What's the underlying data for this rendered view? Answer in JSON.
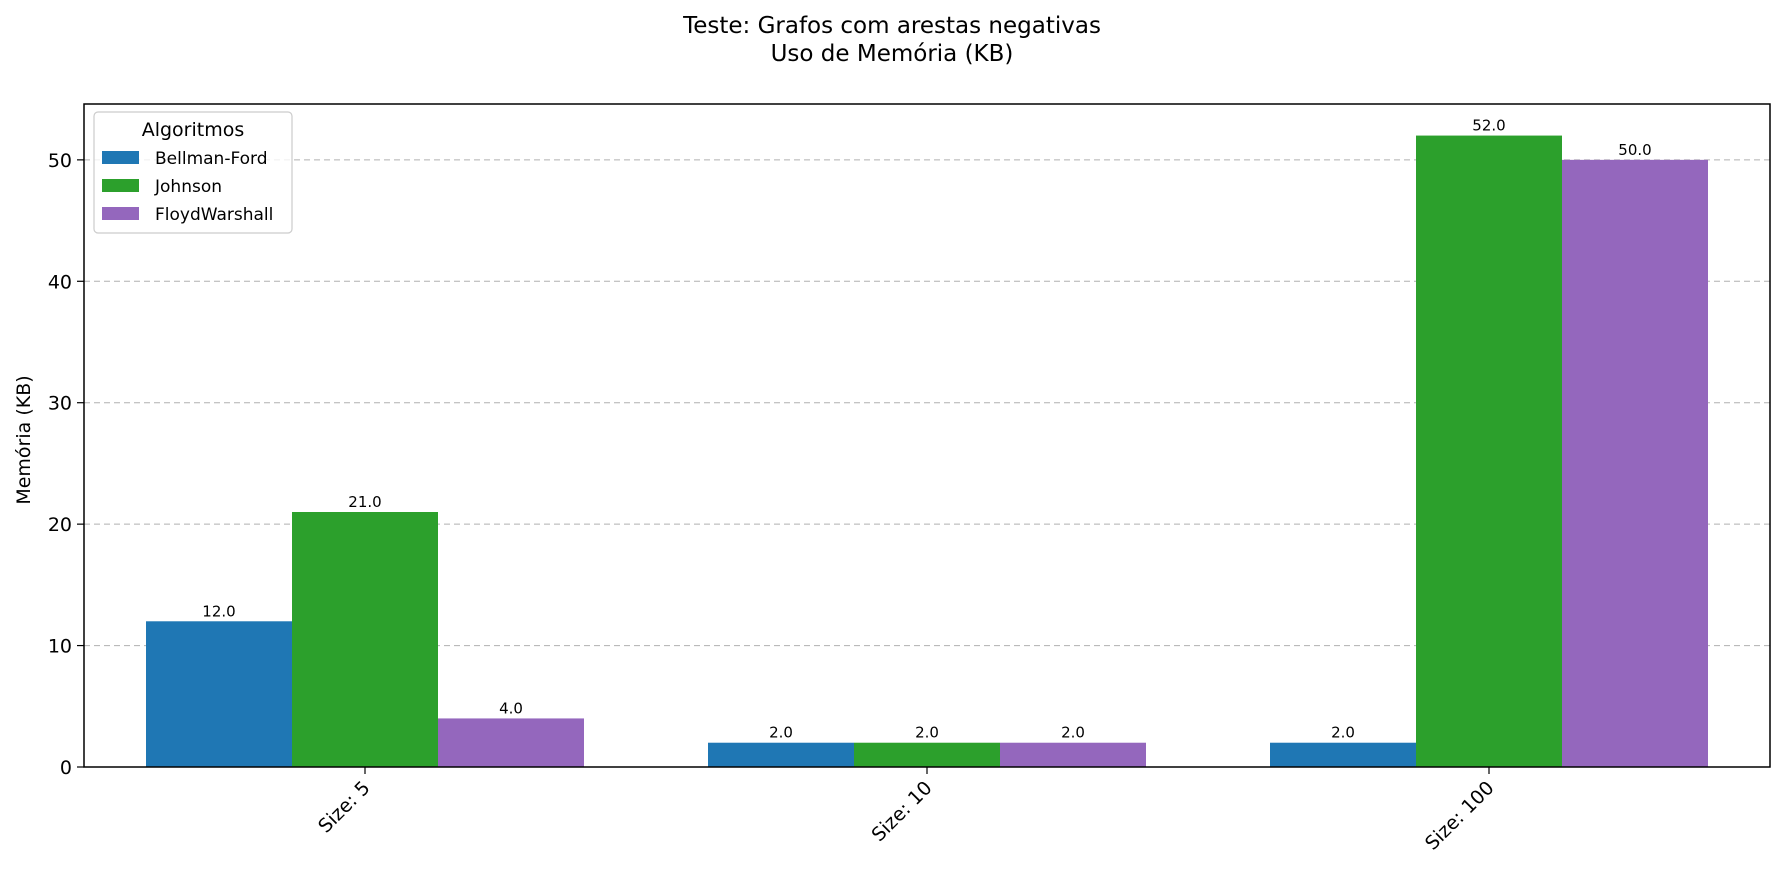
{
  "chart_data": {
    "type": "bar",
    "title": "Teste: Grafos com arestas negativas",
    "subtitle": "Uso de Memória (KB)",
    "xlabel": "",
    "ylabel": "Memória (KB)",
    "categories": [
      "Size: 5",
      "Size: 10",
      "Size: 100"
    ],
    "series": [
      {
        "name": "Bellman-Ford",
        "values": [
          12.0,
          2.0,
          2.0
        ],
        "color": "#1f77b4"
      },
      {
        "name": "Johnson",
        "values": [
          21.0,
          2.0,
          52.0
        ],
        "color": "#2ca02c"
      },
      {
        "name": "FloydWarshall",
        "values": [
          4.0,
          2.0,
          50.0
        ],
        "color": "#9467bd"
      }
    ],
    "data_labels": [
      [
        "12.0",
        "2.0",
        "2.0"
      ],
      [
        "21.0",
        "2.0",
        "52.0"
      ],
      [
        "4.0",
        "2.0",
        "50.0"
      ]
    ],
    "ylim": [
      0,
      54.6
    ],
    "yticks": [
      0,
      10,
      20,
      30,
      40,
      50
    ],
    "grid": "y-dashed",
    "legend": {
      "title": "Algoritmos",
      "placement": "top-left"
    }
  }
}
